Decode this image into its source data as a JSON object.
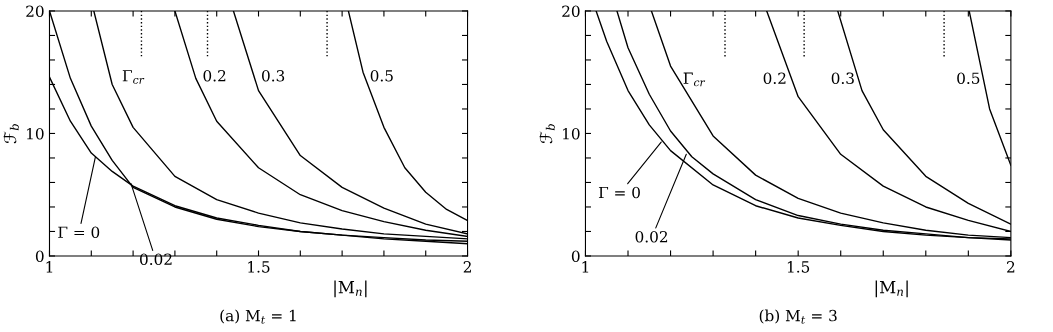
{
  "chart_data": [
    {
      "type": "line",
      "title": "(a) M$_{t}$ = 1",
      "xlabel": "|M$_{n}$|",
      "ylabel": "ℱ$_{b}$",
      "xlim": [
        1,
        2
      ],
      "ylim": [
        0,
        20
      ],
      "xticks": [
        1,
        {
          "value": 1.1,
          "label": null
        },
        {
          "value": 1.2,
          "label": null
        },
        {
          "value": 1.3,
          "label": null
        },
        {
          "value": 1.4,
          "label": null
        },
        1.5,
        {
          "value": 1.6,
          "label": null
        },
        {
          "value": 1.7,
          "label": null
        },
        {
          "value": 1.8,
          "label": null
        },
        {
          "value": 1.9,
          "label": null
        },
        2
      ],
      "yticks": [
        0,
        {
          "value": 2,
          "label": null
        },
        {
          "value": 4,
          "label": null
        },
        {
          "value": 6,
          "label": null
        },
        {
          "value": 8,
          "label": null
        },
        10,
        {
          "value": 12,
          "label": null
        },
        {
          "value": 14,
          "label": null
        },
        {
          "value": 16,
          "label": null
        },
        {
          "value": 18,
          "label": null
        },
        20
      ],
      "series": [
        {
          "color": "#000000",
          "x": [
            1,
            1.05,
            1.1,
            1.15,
            1.2,
            1.3,
            1.4,
            1.5,
            1.6,
            1.7,
            1.8,
            1.9,
            2
          ],
          "values": [
            14.6,
            11.0,
            8.4,
            6.9,
            5.7,
            4.1,
            3.1,
            2.5,
            2.0,
            1.7,
            1.4,
            1.2,
            1.0
          ]
        },
        {
          "color": "#000000",
          "x": [
            1,
            1.05,
            1.1,
            1.15,
            1.2,
            1.3,
            1.4,
            1.5,
            1.6,
            1.7,
            1.8,
            1.9,
            2
          ],
          "values": [
            20,
            14.5,
            10.6,
            7.8,
            5.6,
            4.0,
            3.0,
            2.4,
            2.0,
            1.7,
            1.5,
            1.3,
            1.2
          ]
        },
        {
          "color": "#000000",
          "x": [
            1.106,
            1.15,
            1.2,
            1.3,
            1.4,
            1.5,
            1.6,
            1.7,
            1.8,
            1.9,
            2
          ],
          "values": [
            20,
            14,
            10.5,
            6.5,
            4.6,
            3.5,
            2.7,
            2.2,
            1.8,
            1.6,
            1.4
          ]
        },
        {
          "color": "#000000",
          "x": [
            1.3,
            1.35,
            1.4,
            1.5,
            1.6,
            1.7,
            1.8,
            1.9,
            2
          ],
          "values": [
            20,
            14.5,
            11,
            7.2,
            5.0,
            3.7,
            2.8,
            2.1,
            1.6
          ]
        },
        {
          "color": "#000000",
          "x": [
            1.44,
            1.5,
            1.6,
            1.7,
            1.8,
            1.9,
            2
          ],
          "values": [
            20,
            13.5,
            8.2,
            5.6,
            3.9,
            2.6,
            1.8
          ]
        },
        {
          "color": "#000000",
          "x": [
            1.715,
            1.75,
            1.8,
            1.85,
            1.9,
            1.95,
            2
          ],
          "values": [
            20,
            15,
            10.5,
            7.2,
            5.2,
            3.8,
            2.9
          ]
        },
        {
          "color": "#000000",
          "line_style": "dotted",
          "x": [
            1.22,
            1.22
          ],
          "values": [
            20,
            16.3
          ]
        },
        {
          "color": "#000000",
          "line_style": "dotted",
          "x": [
            1.378,
            1.378
          ],
          "values": [
            20,
            16.3
          ]
        },
        {
          "color": "#000000",
          "line_style": "dotted",
          "x": [
            1.664,
            1.664
          ],
          "values": [
            20,
            16.3
          ]
        }
      ],
      "annotations": [
        {
          "text": "Γ = 0",
          "x": 1.11,
          "y": 8.1
        },
        {
          "text": "0.02",
          "x": 1.195,
          "y": 5.9
        },
        "Γ$_{cr}$",
        "0.2",
        "0.3",
        "0.5"
      ]
    },
    {
      "type": "line",
      "title": "(b) M$_{t}$ = 3",
      "xlabel": "|M$_{n}$|",
      "ylabel": "ℱ$_{b}$",
      "xlim": [
        1,
        2
      ],
      "ylim": [
        0,
        20
      ],
      "xticks": [
        1,
        {
          "value": 1.1,
          "label": null
        },
        {
          "value": 1.2,
          "label": null
        },
        {
          "value": 1.3,
          "label": null
        },
        {
          "value": 1.4,
          "label": null
        },
        1.5,
        {
          "value": 1.6,
          "label": null
        },
        {
          "value": 1.7,
          "label": null
        },
        {
          "value": 1.8,
          "label": null
        },
        {
          "value": 1.9,
          "label": null
        },
        2
      ],
      "yticks": [
        0,
        {
          "value": 2,
          "label": null
        },
        {
          "value": 4,
          "label": null
        },
        {
          "value": 6,
          "label": null
        },
        {
          "value": 8,
          "label": null
        },
        10,
        {
          "value": 12,
          "label": null
        },
        {
          "value": 14,
          "label": null
        },
        {
          "value": 16,
          "label": null
        },
        {
          "value": 18,
          "label": null
        },
        20
      ],
      "series": [
        {
          "color": "#000000",
          "x": [
            1.025,
            1.05,
            1.1,
            1.15,
            1.2,
            1.3,
            1.4,
            1.5,
            1.6,
            1.7,
            1.8,
            1.9,
            2
          ],
          "values": [
            20,
            17.5,
            13.5,
            10.7,
            8.6,
            5.8,
            4.1,
            3.1,
            2.5,
            2.0,
            1.7,
            1.5,
            1.3
          ]
        },
        {
          "color": "#000000",
          "x": [
            1.074,
            1.1,
            1.15,
            1.2,
            1.25,
            1.3,
            1.4,
            1.5,
            1.6,
            1.7,
            1.8,
            1.9,
            2
          ],
          "values": [
            20,
            17,
            13.2,
            10.2,
            8.1,
            6.7,
            4.6,
            3.3,
            2.6,
            2.1,
            1.8,
            1.5,
            1.4
          ]
        },
        {
          "color": "#000000",
          "x": [
            1.155,
            1.2,
            1.3,
            1.4,
            1.5,
            1.6,
            1.7,
            1.8,
            1.9,
            2
          ],
          "values": [
            20,
            15.5,
            9.8,
            6.6,
            4.7,
            3.5,
            2.7,
            2.1,
            1.7,
            1.5
          ]
        },
        {
          "color": "#000000",
          "x": [
            1.426,
            1.5,
            1.6,
            1.7,
            1.8,
            1.9,
            2
          ],
          "values": [
            20,
            13,
            8.3,
            5.7,
            4.0,
            2.9,
            2.0
          ]
        },
        {
          "color": "#000000",
          "x": [
            1.593,
            1.65,
            1.7,
            1.8,
            1.9,
            2
          ],
          "values": [
            20,
            13.5,
            10.3,
            6.5,
            4.3,
            2.6
          ]
        },
        {
          "color": "#000000",
          "x": [
            1.902,
            1.95,
            2
          ],
          "values": [
            20,
            12,
            7.4
          ]
        },
        {
          "color": "#000000",
          "line_style": "dotted",
          "x": [
            1.328,
            1.328
          ],
          "values": [
            20,
            16.1
          ]
        },
        {
          "color": "#000000",
          "line_style": "dotted",
          "x": [
            1.514,
            1.514
          ],
          "values": [
            20,
            16.1
          ]
        },
        {
          "color": "#000000",
          "line_style": "dotted",
          "x": [
            1.843,
            1.843
          ],
          "values": [
            20,
            16.1
          ]
        }
      ],
      "annotations": [
        {
          "text": "Γ = 0",
          "x": 1.178,
          "y": 9.3
        },
        {
          "text": "0.02",
          "x": 1.237,
          "y": 8.3
        },
        "Γ$_{cr}$",
        "0.2",
        "0.3",
        "0.5"
      ]
    }
  ]
}
